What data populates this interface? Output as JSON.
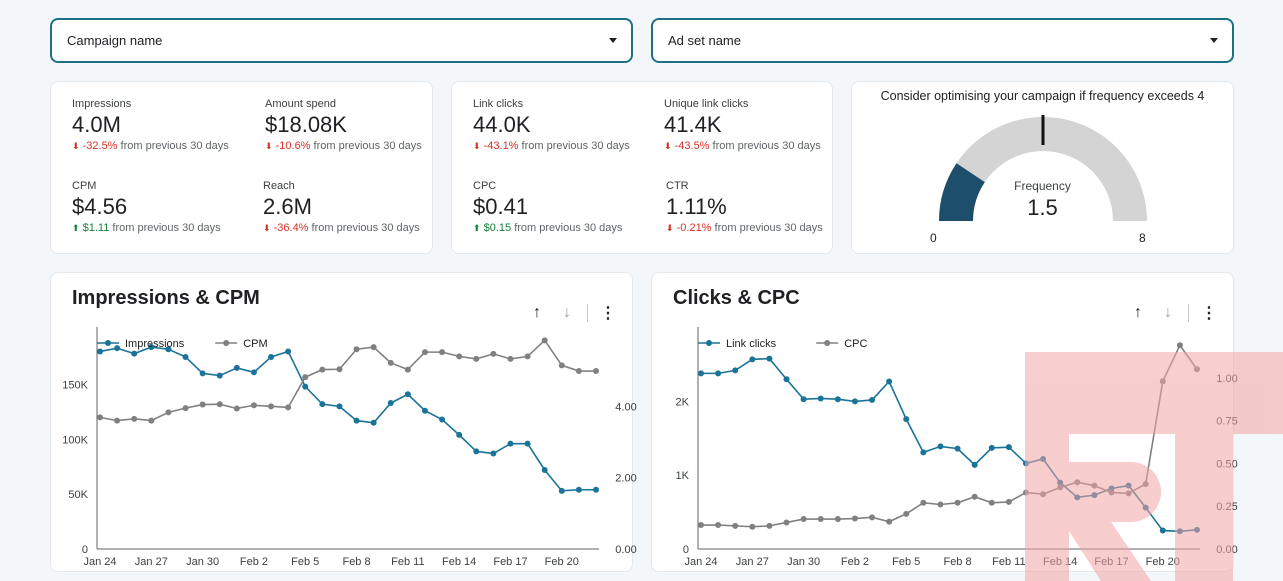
{
  "filters": {
    "campaign_label": "Campaign name",
    "adset_label": "Ad set name"
  },
  "kpis_left": [
    {
      "label": "Impressions",
      "value": "4.0M",
      "arrow": "⬇",
      "change": "-32.5%",
      "trend": "neg",
      "suffix": "from previous 30 days"
    },
    {
      "label": "Amount spend",
      "value": "$18.08K",
      "arrow": "⬇",
      "change": "-10.6%",
      "trend": "neg",
      "suffix": "from previous 30 days"
    },
    {
      "label": "CPM",
      "value": "$4.56",
      "arrow": "⬆",
      "change": "$1.11",
      "trend": "pos",
      "suffix": "from previous 30 days"
    },
    {
      "label": "Reach",
      "value": "2.6M",
      "arrow": "⬇",
      "change": "-36.4%",
      "trend": "neg",
      "suffix": "from previous 30 days"
    }
  ],
  "kpis_right": [
    {
      "label": "Link clicks",
      "value": "44.0K",
      "arrow": "⬇",
      "change": "-43.1%",
      "trend": "neg",
      "suffix": "from previous 30 days"
    },
    {
      "label": "Unique link clicks",
      "value": "41.4K",
      "arrow": "⬇",
      "change": "-43.5%",
      "trend": "neg",
      "suffix": "from previous 30 days"
    },
    {
      "label": "CPC",
      "value": "$0.41",
      "arrow": "⬆",
      "change": "$0.15",
      "trend": "pos",
      "suffix": "from previous 30 days"
    },
    {
      "label": "CTR",
      "value": "1.11%",
      "arrow": "⬇",
      "change": "-0.21%",
      "trend": "neg",
      "suffix": "from previous 30 days"
    }
  ],
  "gauge": {
    "title": "Consider optimising your campaign if frequency exceeds 4",
    "label": "Frequency",
    "value": 1.5,
    "value_text": "1.5",
    "min": 0,
    "max": 8,
    "target": 4,
    "min_text": "0",
    "max_text": "8",
    "fill_color": "#1d4e6b",
    "track_color": "#d4d4d4"
  },
  "toolbar": {
    "sort_up": "↑",
    "sort_down": "↓",
    "more": "⋮"
  },
  "colors": {
    "series_primary": "#1a7398",
    "series_secondary": "#808080"
  },
  "chart_data": [
    {
      "type": "line",
      "title": "Impressions & CPM",
      "categories": [
        "Jan 24",
        "Jan 25",
        "Jan 26",
        "Jan 27",
        "Jan 28",
        "Jan 29",
        "Jan 30",
        "Jan 31",
        "Feb 1",
        "Feb 2",
        "Feb 3",
        "Feb 4",
        "Feb 5",
        "Feb 6",
        "Feb 7",
        "Feb 8",
        "Feb 9",
        "Feb 10",
        "Feb 11",
        "Feb 12",
        "Feb 13",
        "Feb 14",
        "Feb 15",
        "Feb 16",
        "Feb 17",
        "Feb 18",
        "Feb 19",
        "Feb 20",
        "Feb 21",
        "Feb 22"
      ],
      "x_tick_labels": [
        "Jan 24",
        "Jan 27",
        "Jan 30",
        "Feb 2",
        "Feb 5",
        "Feb 8",
        "Feb 11",
        "Feb 14",
        "Feb 17",
        "Feb 20"
      ],
      "x_tick_every": 3,
      "series": [
        {
          "name": "Impressions",
          "axis": "left",
          "values": [
            180000,
            183000,
            178000,
            184000,
            182000,
            175000,
            160000,
            158000,
            165000,
            161000,
            175000,
            180000,
            148000,
            132000,
            130000,
            117000,
            115000,
            133000,
            141000,
            126000,
            118000,
            104000,
            89000,
            87000,
            96000,
            96000,
            72000,
            53000,
            54000,
            54000
          ]
        },
        {
          "name": "CPM",
          "axis": "right",
          "values": [
            3.69,
            3.6,
            3.65,
            3.6,
            3.83,
            3.95,
            4.05,
            4.06,
            3.94,
            4.03,
            4.0,
            3.97,
            4.82,
            5.03,
            5.04,
            5.6,
            5.66,
            5.22,
            5.03,
            5.52,
            5.52,
            5.4,
            5.33,
            5.47,
            5.33,
            5.4,
            5.85,
            5.15,
            4.99,
            4.99
          ]
        }
      ],
      "y_left": {
        "min": 0,
        "max": 195000,
        "ticks": [
          0,
          50000,
          100000,
          150000
        ],
        "tick_labels": [
          "0",
          "50K",
          "100K",
          "150K"
        ]
      },
      "y_right": {
        "min": 0,
        "max": 6.0,
        "ticks": [
          0,
          2,
          4
        ],
        "tick_labels": [
          "0.00",
          "2.00",
          "4.00"
        ]
      },
      "legend": "top-left"
    },
    {
      "type": "line",
      "title": "Clicks & CPC",
      "categories": [
        "Jan 24",
        "Jan 25",
        "Jan 26",
        "Jan 27",
        "Jan 28",
        "Jan 29",
        "Jan 30",
        "Jan 31",
        "Feb 1",
        "Feb 2",
        "Feb 3",
        "Feb 4",
        "Feb 5",
        "Feb 6",
        "Feb 7",
        "Feb 8",
        "Feb 9",
        "Feb 10",
        "Feb 11",
        "Feb 12",
        "Feb 13",
        "Feb 14",
        "Feb 15",
        "Feb 16",
        "Feb 17",
        "Feb 18",
        "Feb 19",
        "Feb 20",
        "Feb 21",
        "Feb 22"
      ],
      "x_tick_labels": [
        "Jan 24",
        "Jan 27",
        "Jan 30",
        "Feb 2",
        "Feb 5",
        "Feb 8",
        "Feb 11",
        "Feb 14",
        "Feb 17",
        "Feb 20"
      ],
      "x_tick_every": 3,
      "series": [
        {
          "name": "Link clicks",
          "axis": "left",
          "values": [
            2380,
            2380,
            2420,
            2570,
            2580,
            2300,
            2030,
            2040,
            2030,
            2000,
            2020,
            2270,
            1760,
            1310,
            1390,
            1360,
            1140,
            1370,
            1380,
            1160,
            1220,
            900,
            700,
            730,
            820,
            860,
            560,
            250,
            240,
            260
          ]
        },
        {
          "name": "CPC",
          "axis": "right",
          "values": [
            0.14,
            0.14,
            0.135,
            0.13,
            0.135,
            0.155,
            0.175,
            0.175,
            0.175,
            0.178,
            0.185,
            0.16,
            0.205,
            0.27,
            0.26,
            0.27,
            0.305,
            0.27,
            0.275,
            0.33,
            0.32,
            0.36,
            0.39,
            0.37,
            0.33,
            0.325,
            0.38,
            0.98,
            1.19,
            1.05
          ]
        }
      ],
      "y_left": {
        "min": 0,
        "max": 2900,
        "ticks": [
          0,
          1000,
          2000
        ],
        "tick_labels": [
          "0",
          "1K",
          "2K"
        ]
      },
      "y_right": {
        "min": 0,
        "max": 1.25,
        "ticks": [
          0,
          0.25,
          0.5,
          0.75,
          1.0
        ],
        "tick_labels": [
          "0.00",
          "0.25",
          "0.50",
          "0.75",
          "1.00"
        ]
      },
      "legend": "top-left"
    }
  ]
}
